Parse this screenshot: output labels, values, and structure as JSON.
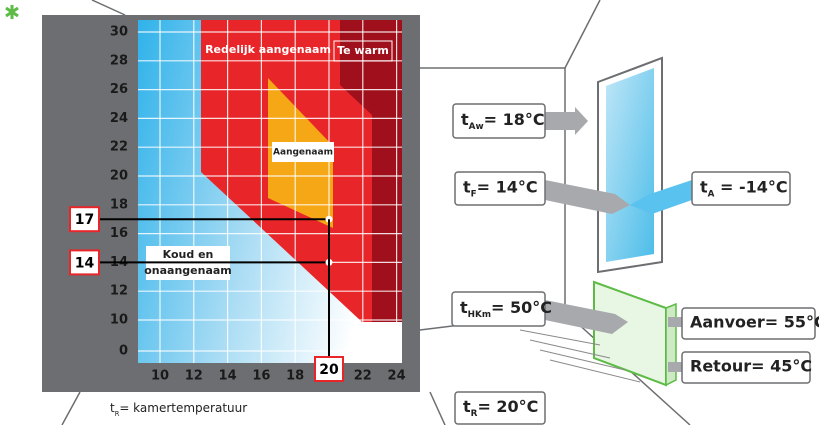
{
  "chart": {
    "zones": {
      "warm": "Redelijk aangenaam",
      "too_warm": "Te warm",
      "pleasant": "Aangenaam",
      "cold": [
        "Koud en",
        "onaangenaam"
      ]
    },
    "yticks": [
      0,
      10,
      12,
      14,
      16,
      18,
      20,
      22,
      24,
      26,
      28,
      30
    ],
    "xticks": [
      10,
      12,
      14,
      16,
      18,
      20,
      22,
      24
    ],
    "markers": {
      "y": [
        17,
        14
      ],
      "x": 20
    },
    "caption": {
      "main": "t",
      "sub": "R",
      "rest": "= kamertemperatuur"
    }
  },
  "labels": [
    {
      "main": "t",
      "sub": "Aw",
      "rest": "= 18°C"
    },
    {
      "main": "t",
      "sub": "F",
      "rest": "= 14°C"
    },
    {
      "main": "t",
      "sub": "A",
      "rest": " = -14°C"
    },
    {
      "main": "t",
      "sub": "HKm",
      "rest": "= 50°C"
    },
    {
      "main": "Aanvoer= 55°C"
    },
    {
      "main": "Retour= 45°C"
    },
    {
      "main": "t",
      "sub": "R",
      "rest": "= 20°C"
    }
  ]
}
